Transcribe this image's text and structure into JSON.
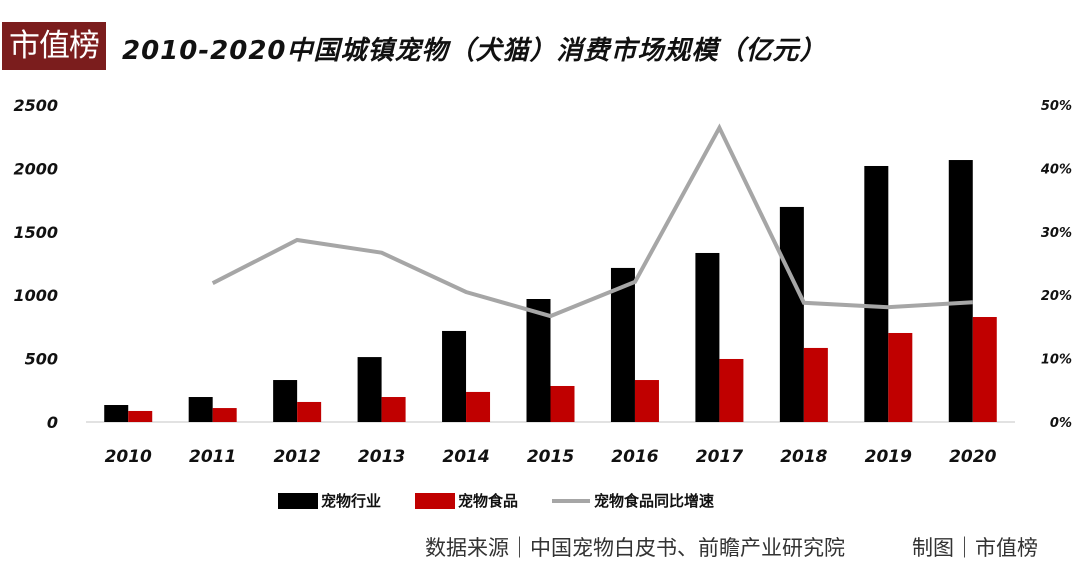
{
  "header": {
    "brand": "市值榜",
    "title": "2010-2020中国城镇宠物（犬猫）消费市场规模（亿元）"
  },
  "colors": {
    "brand_bg": "#7b1d1d",
    "industry": "#000000",
    "food": "#c00000",
    "growth": "#a6a6a6",
    "axis": "#d9d9d9"
  },
  "chart_data": {
    "type": "bar",
    "title": "2010-2020中国城镇宠物（犬猫）消费市场规模（亿元）",
    "xlabel": "",
    "ylabel": "亿元",
    "y2label": "%",
    "categories": [
      "2010",
      "2011",
      "2012",
      "2013",
      "2014",
      "2015",
      "2016",
      "2017",
      "2018",
      "2019",
      "2020"
    ],
    "series": [
      {
        "name": "宠物行业",
        "type": "bar",
        "axis": "left",
        "values": [
          134,
          197,
          331,
          512,
          718,
          970,
          1215,
          1333,
          1696,
          2019,
          2066
        ]
      },
      {
        "name": "宠物食品",
        "type": "bar",
        "axis": "left",
        "values": [
          87,
          110,
          158,
          197,
          237,
          284,
          331,
          497,
          584,
          702,
          828
        ]
      },
      {
        "name": "宠物食品同比增速",
        "type": "line",
        "axis": "right",
        "values": [
          null,
          21.9,
          28.7,
          26.7,
          20.5,
          16.7,
          22.1,
          46.4,
          18.8,
          18.1,
          18.9
        ]
      }
    ],
    "ylim": [
      0,
      2500
    ],
    "y2lim": [
      0,
      50
    ],
    "yticks": [
      "0",
      "500",
      "1000",
      "1500",
      "2000",
      "2500"
    ],
    "y2ticks": [
      "0%",
      "10%",
      "20%",
      "30%",
      "40%",
      "50%"
    ],
    "grid": false,
    "legend_position": "bottom"
  },
  "legend": [
    {
      "label": "宠物行业"
    },
    {
      "label": "宠物食品"
    },
    {
      "label": "宠物食品同比增速"
    }
  ],
  "footer": {
    "source": "数据来源｜中国宠物白皮书、前瞻产业研究院",
    "credit": "制图｜市值榜"
  }
}
